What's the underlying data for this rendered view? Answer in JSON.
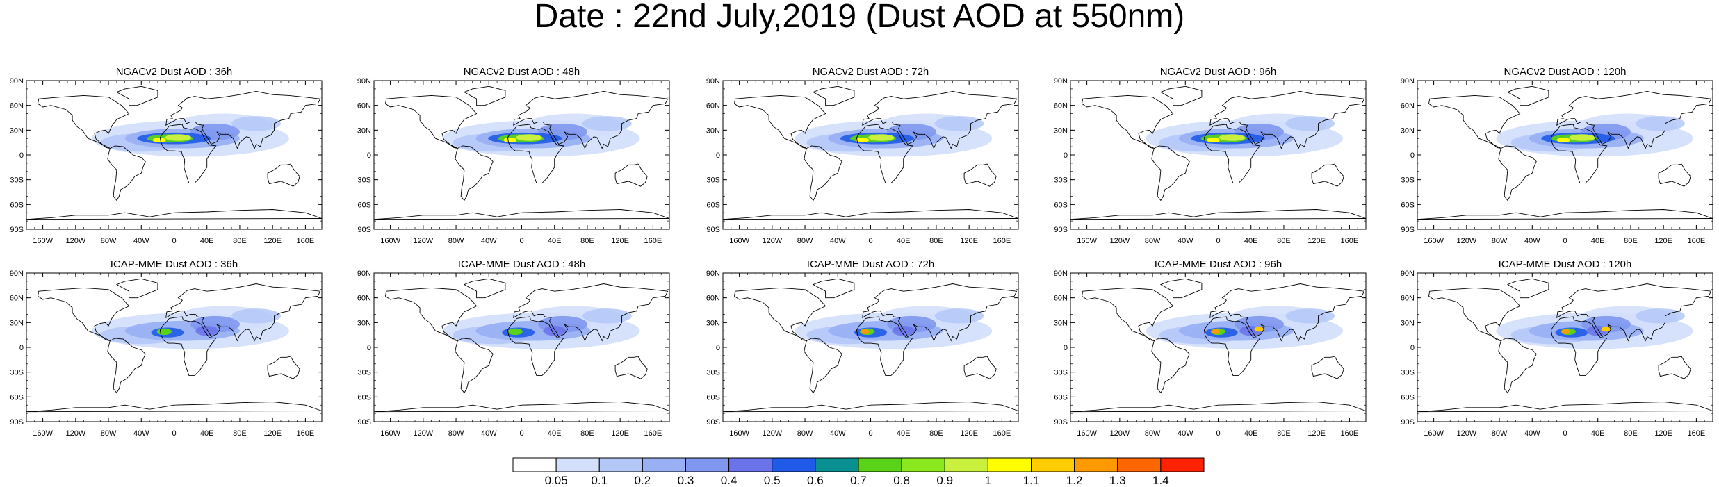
{
  "title": "Date : 22nd July,2019 (Dust AOD at 550nm)",
  "panel_rows": [
    {
      "model": "NGACv2",
      "panels": [
        {
          "title": "NGACv2 Dust AOD : 36h"
        },
        {
          "title": "NGACv2 Dust AOD : 48h"
        },
        {
          "title": "NGACv2 Dust AOD : 72h"
        },
        {
          "title": "NGACv2 Dust AOD : 96h"
        },
        {
          "title": "NGACv2 Dust AOD : 120h"
        }
      ]
    },
    {
      "model": "ICAP-MME",
      "panels": [
        {
          "title": "ICAP-MME Dust AOD : 36h"
        },
        {
          "title": "ICAP-MME Dust AOD : 48h"
        },
        {
          "title": "ICAP-MME Dust AOD : 72h"
        },
        {
          "title": "ICAP-MME Dust AOD : 96h"
        },
        {
          "title": "ICAP-MME Dust AOD : 120h"
        }
      ]
    }
  ],
  "lat_labels": [
    "90N",
    "60N",
    "30N",
    "0",
    "30S",
    "60S",
    "90S"
  ],
  "lon_labels": [
    "160W",
    "120W",
    "80W",
    "40W",
    "0",
    "40E",
    "80E",
    "120E",
    "160E"
  ],
  "colorbar": {
    "labels": [
      "0.05",
      "0.1",
      "0.2",
      "0.3",
      "0.4",
      "0.5",
      "0.6",
      "0.7",
      "0.8",
      "0.9",
      "1",
      "1.1",
      "1.2",
      "1.3",
      "1.4"
    ],
    "colors": [
      "#ffffff",
      "#d4e0fb",
      "#b4c8f8",
      "#99b1f4",
      "#7f97ee",
      "#6a73ea",
      "#1f5ae8",
      "#0a9090",
      "#5ad21a",
      "#8ce81e",
      "#c8f03c",
      "#ffff00",
      "#ffcc00",
      "#ff9900",
      "#ff6600",
      "#ff2200"
    ]
  }
}
